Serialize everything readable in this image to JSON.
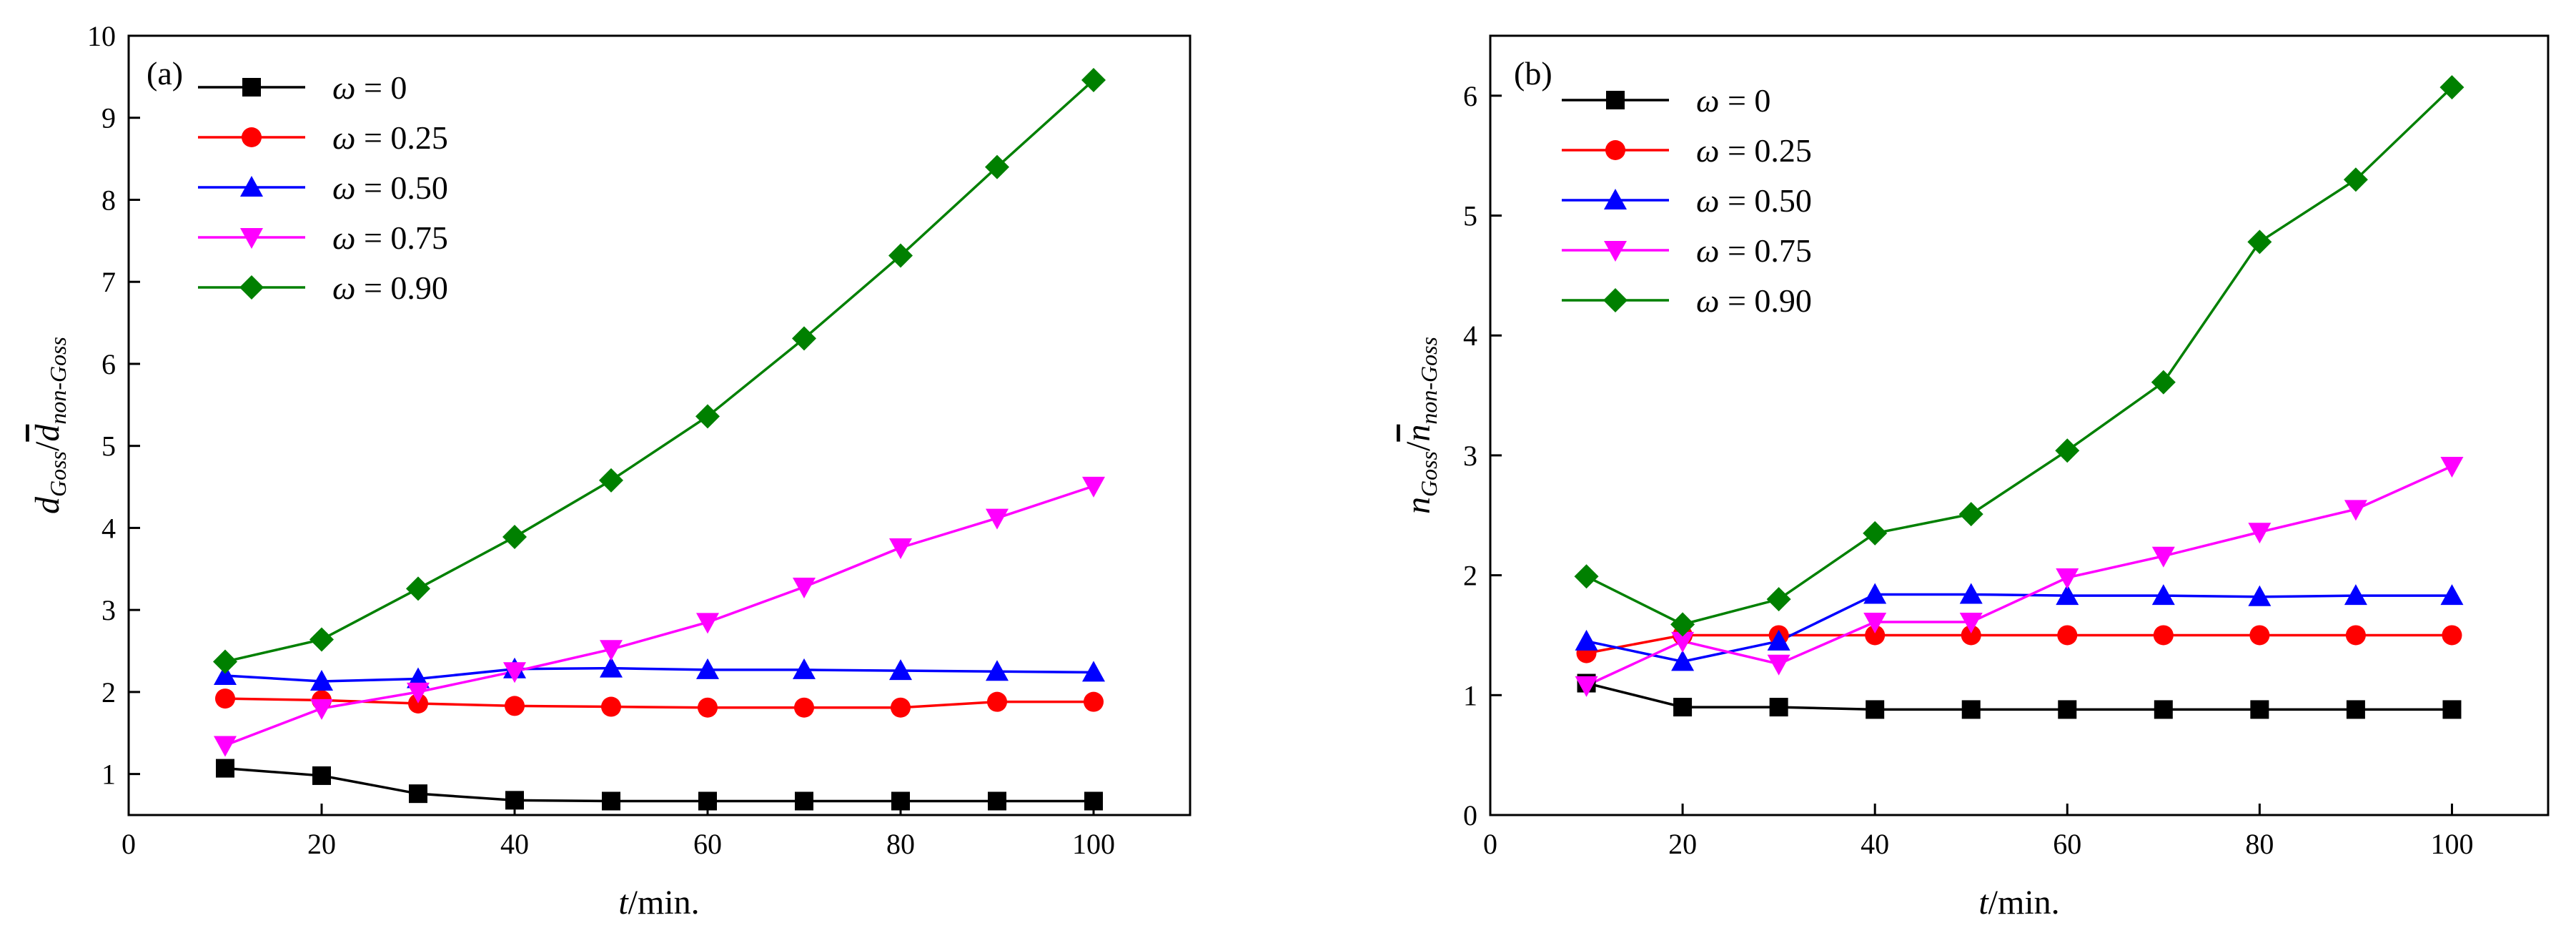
{
  "chart_data": [
    {
      "type": "line",
      "panel_label": "(a)",
      "xlabel": {
        "var": "t",
        "unit": "/min."
      },
      "ylabel": {
        "num": "d",
        "num_sub": "Goss",
        "den": "d",
        "den_sub": "non-Goss"
      },
      "xlim": [
        0,
        110
      ],
      "ylim": [
        0.5,
        10
      ],
      "xticks": [
        0,
        20,
        40,
        60,
        80,
        100
      ],
      "yticks": [
        1,
        2,
        3,
        4,
        5,
        6,
        7,
        8,
        9,
        10
      ],
      "x": [
        10,
        20,
        30,
        40,
        50,
        60,
        70,
        80,
        90,
        100
      ],
      "legend_position": "top-left",
      "series": [
        {
          "name": "ω = 0",
          "symbol": "ω",
          "label_rest": " = 0",
          "color": "#000000",
          "marker": "square",
          "values": [
            1.07,
            0.98,
            0.76,
            0.68,
            0.67,
            0.67,
            0.67,
            0.67,
            0.67,
            0.67
          ]
        },
        {
          "name": "ω = 0.25",
          "symbol": "ω",
          "label_rest": " = 0.25",
          "color": "#ff0000",
          "marker": "circle",
          "values": [
            1.92,
            1.9,
            1.86,
            1.83,
            1.82,
            1.81,
            1.81,
            1.81,
            1.88,
            1.88
          ]
        },
        {
          "name": "ω = 0.50",
          "symbol": "ω",
          "label_rest": " = 0.50",
          "color": "#0000ff",
          "marker": "triangle-up",
          "values": [
            2.2,
            2.13,
            2.16,
            2.28,
            2.29,
            2.27,
            2.27,
            2.26,
            2.25,
            2.24
          ]
        },
        {
          "name": "ω = 0.75",
          "symbol": "ω",
          "label_rest": " = 0.75",
          "color": "#ff00ff",
          "marker": "triangle-down",
          "values": [
            1.35,
            1.8,
            2.0,
            2.25,
            2.52,
            2.85,
            3.28,
            3.76,
            4.12,
            4.51
          ]
        },
        {
          "name": "ω = 0.90",
          "symbol": "ω",
          "label_rest": " = 0.90",
          "color": "#008000",
          "marker": "diamond",
          "values": [
            2.37,
            2.64,
            3.26,
            3.89,
            4.58,
            5.36,
            6.31,
            7.32,
            8.4,
            9.46
          ]
        }
      ]
    },
    {
      "type": "line",
      "panel_label": "(b)",
      "xlabel": {
        "var": "t",
        "unit": "/min."
      },
      "ylabel": {
        "num": "n",
        "num_sub": "Goss",
        "den": "n",
        "den_sub": "non-Goss"
      },
      "xlim": [
        0,
        110
      ],
      "ylim": [
        0,
        6.5
      ],
      "xticks": [
        0,
        20,
        40,
        60,
        80,
        100
      ],
      "yticks": [
        0,
        1,
        2,
        3,
        4,
        5,
        6
      ],
      "x": [
        10,
        20,
        30,
        40,
        50,
        60,
        70,
        80,
        90,
        100
      ],
      "legend_position": "top-left",
      "series": [
        {
          "name": "ω = 0",
          "symbol": "ω",
          "label_rest": " = 0",
          "color": "#000000",
          "marker": "square",
          "values": [
            1.1,
            0.9,
            0.9,
            0.88,
            0.88,
            0.88,
            0.88,
            0.88,
            0.88,
            0.88
          ]
        },
        {
          "name": "ω = 0.25",
          "symbol": "ω",
          "label_rest": " = 0.25",
          "color": "#ff0000",
          "marker": "circle",
          "values": [
            1.35,
            1.5,
            1.5,
            1.5,
            1.5,
            1.5,
            1.5,
            1.5,
            1.5,
            1.5
          ]
        },
        {
          "name": "ω = 0.50",
          "symbol": "ω",
          "label_rest": " = 0.50",
          "color": "#0000ff",
          "marker": "triangle-up",
          "values": [
            1.45,
            1.28,
            1.45,
            1.84,
            1.84,
            1.83,
            1.83,
            1.82,
            1.83,
            1.83
          ]
        },
        {
          "name": "ω = 0.75",
          "symbol": "ω",
          "label_rest": " = 0.75",
          "color": "#ff00ff",
          "marker": "triangle-down",
          "values": [
            1.08,
            1.45,
            1.26,
            1.61,
            1.61,
            1.98,
            2.16,
            2.36,
            2.55,
            2.91
          ]
        },
        {
          "name": "ω = 0.90",
          "symbol": "ω",
          "label_rest": " = 0.90",
          "color": "#008000",
          "marker": "diamond",
          "values": [
            1.99,
            1.59,
            1.8,
            2.35,
            2.51,
            3.04,
            3.61,
            4.78,
            5.3,
            6.07
          ]
        }
      ]
    }
  ]
}
